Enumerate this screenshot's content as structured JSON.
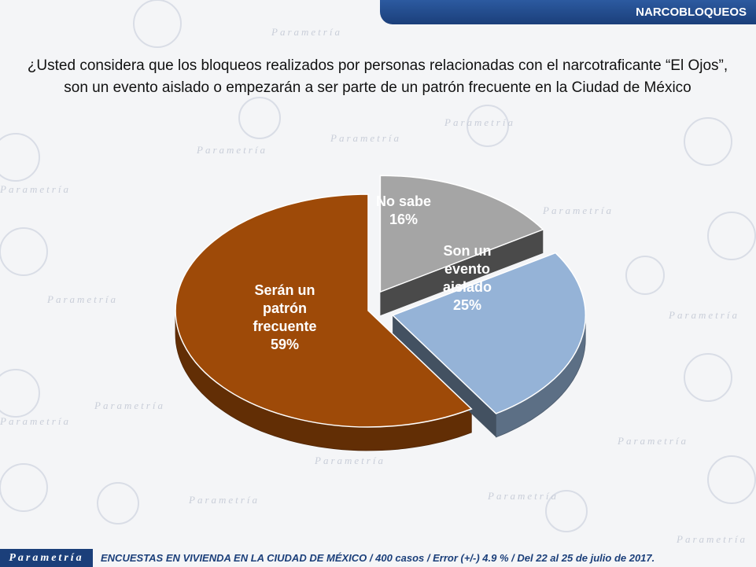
{
  "header": {
    "section_title": "NARCOBLOQUEOS"
  },
  "question": "¿Usted considera que los bloqueos realizados por personas relacionadas con el narcotraficante “El Ojos”, son un evento aislado o empezarán a ser parte de un patrón frecuente en la Ciudad de México",
  "chart_data": {
    "type": "pie",
    "title": "",
    "slices": [
      {
        "label": "Serán un patrón frecuente",
        "label_lines": [
          "Serán un",
          "patrón",
          "frecuente"
        ],
        "value": 59,
        "value_label": "59%",
        "color": "#9e4a08",
        "exploded": false
      },
      {
        "label": "No sabe",
        "label_lines": [
          "No sabe"
        ],
        "value": 16,
        "value_label": "16%",
        "color": "#a5a5a5",
        "exploded": true
      },
      {
        "label": "Son un evento aislado",
        "label_lines": [
          "Son un",
          "evento",
          "aislado"
        ],
        "value": 25,
        "value_label": "25%",
        "color": "#95b3d7",
        "exploded": true
      }
    ],
    "style": "3d-exploded"
  },
  "footer": {
    "logo": "Parametría",
    "note": "ENCUESTAS EN VIVIENDA EN LA CIUDAD DE MÉXICO / 400 casos / Error (+/-) 4.9 % / Del 22 al 25 de julio de 2017."
  },
  "watermark": {
    "text": "Parametría"
  }
}
